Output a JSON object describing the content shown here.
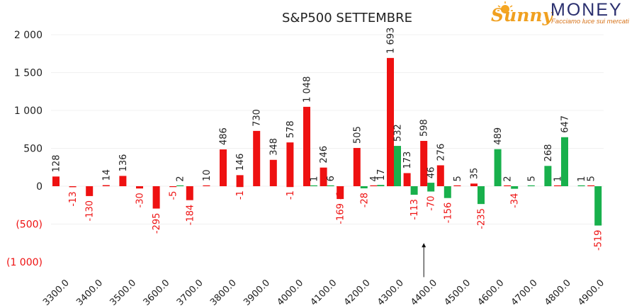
{
  "logo": {
    "word1": "Sunny",
    "word2": "MONEY",
    "tagline": "Facciamo luce sui mercati"
  },
  "colors": {
    "up": "#ee1111",
    "down": "#18b04c",
    "negative_label": "#ee1111",
    "sun": "#f5a623",
    "grid": "#f0f0f0"
  },
  "chart_data": {
    "type": "bar",
    "title": "S&P500 SETTEMBRE",
    "xlabel": "",
    "ylabel": "",
    "ylim": [
      -1000,
      2000
    ],
    "grid": true,
    "legend": "none",
    "yticks": [
      {
        "value": 2000,
        "label": "2 000"
      },
      {
        "value": 1500,
        "label": "1 500"
      },
      {
        "value": 1000,
        "label": "1 000"
      },
      {
        "value": 500,
        "label": "500"
      },
      {
        "value": 0,
        "label": "0"
      },
      {
        "value": -500,
        "label": "(500)"
      },
      {
        "value": -1000,
        "label": "(1 000)"
      }
    ],
    "xticks": [
      "3300.0",
      "3400.0",
      "3500.0",
      "3600.0",
      "3700.0",
      "3800.0",
      "3900.0",
      "4000.0",
      "4100.0",
      "4200.0",
      "4300.0",
      "4400.0",
      "4500.0",
      "4600.0",
      "4700.0",
      "4800.0",
      "4900.0"
    ],
    "series": [
      {
        "color": "#ee1111",
        "points": [
          {
            "x": 3300,
            "value": 128,
            "label": "128"
          },
          {
            "x": 3350,
            "value": -13,
            "label": "-13"
          },
          {
            "x": 3400,
            "value": -130,
            "label": "-130"
          },
          {
            "x": 3450,
            "value": 14,
            "label": "14"
          },
          {
            "x": 3500,
            "value": 136,
            "label": "136"
          },
          {
            "x": 3550,
            "value": -30,
            "label": "-30"
          },
          {
            "x": 3600,
            "value": -295,
            "label": "-295"
          },
          {
            "x": 3650,
            "value": -5,
            "label": "-5"
          },
          {
            "x": 3700,
            "value": -184,
            "label": "-184"
          },
          {
            "x": 3750,
            "value": 10,
            "label": "10"
          },
          {
            "x": 3800,
            "value": 486,
            "label": "486"
          },
          {
            "x": 3850,
            "value": -1,
            "label": "-1"
          },
          {
            "x": 3850,
            "value": 146,
            "label": "146"
          },
          {
            "x": 3900,
            "value": 730,
            "label": "730"
          },
          {
            "x": 3950,
            "value": 348,
            "label": "348"
          },
          {
            "x": 4000,
            "value": -1,
            "label": "-1"
          },
          {
            "x": 4000,
            "value": 578,
            "label": "578"
          },
          {
            "x": 4050,
            "value": 1048,
            "label": "1 048"
          },
          {
            "x": 4100,
            "value": 246,
            "label": "246"
          },
          {
            "x": 4150,
            "value": -1,
            "label": "-1"
          },
          {
            "x": 4150,
            "value": -169,
            "label": "-169"
          },
          {
            "x": 4200,
            "value": 505,
            "label": "505"
          },
          {
            "x": 4250,
            "value": 4,
            "label": "4"
          },
          {
            "x": 4300,
            "value": 1693,
            "label": "1 693"
          },
          {
            "x": 4350,
            "value": 173,
            "label": "173"
          },
          {
            "x": 4400,
            "value": 598,
            "label": "598"
          },
          {
            "x": 4450,
            "value": 276,
            "label": "276"
          },
          {
            "x": 4500,
            "value": 5,
            "label": "5"
          },
          {
            "x": 4550,
            "value": 35,
            "label": "35"
          },
          {
            "x": 4650,
            "value": 2,
            "label": "2"
          },
          {
            "x": 4800,
            "value": 1,
            "label": "1"
          },
          {
            "x": 4900,
            "value": 5,
            "label": "5"
          }
        ]
      },
      {
        "color": "#18b04c",
        "points": [
          {
            "x": 3650,
            "value": 2,
            "label": "2"
          },
          {
            "x": 4050,
            "value": 1,
            "label": "1"
          },
          {
            "x": 4100,
            "value": 6,
            "label": "6"
          },
          {
            "x": 4200,
            "value": -28,
            "label": "-28"
          },
          {
            "x": 4250,
            "value": 17,
            "label": "17"
          },
          {
            "x": 4300,
            "value": 532,
            "label": "532"
          },
          {
            "x": 4350,
            "value": -113,
            "label": "-113"
          },
          {
            "x": 4400,
            "value": 46,
            "label": "46"
          },
          {
            "x": 4400,
            "value": -70,
            "label": "-70"
          },
          {
            "x": 4450,
            "value": -156,
            "label": "-156"
          },
          {
            "x": 4550,
            "value": -235,
            "label": "-235"
          },
          {
            "x": 4600,
            "value": 489,
            "label": "489"
          },
          {
            "x": 4650,
            "value": -34,
            "label": "-34"
          },
          {
            "x": 4700,
            "value": 5,
            "label": "5"
          },
          {
            "x": 4750,
            "value": 268,
            "label": "268"
          },
          {
            "x": 4800,
            "value": 647,
            "label": "647"
          },
          {
            "x": 4850,
            "value": 1,
            "label": "1"
          },
          {
            "x": 4900,
            "value": -519,
            "label": "-519"
          }
        ]
      }
    ],
    "annotation": {
      "type": "arrow",
      "x": 4400,
      "from_value": -1200,
      "to_value": -750
    }
  }
}
